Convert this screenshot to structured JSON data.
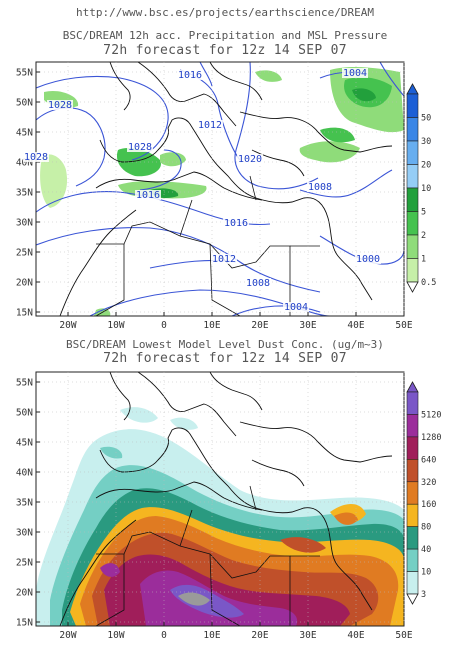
{
  "header": {
    "url": "http://www.bsc.es/projects/earthscience/DREAM"
  },
  "panel_top": {
    "title_line1": "BSC/DREAM 12h acc. Precipitation and MSL Pressure",
    "title_line2": "72h forecast for 12z 14 SEP 07",
    "lat_labels": [
      "55N",
      "50N",
      "45N",
      "40N",
      "35N",
      "30N",
      "25N",
      "20N",
      "15N"
    ],
    "lon_labels": [
      "20W",
      "10W",
      "0",
      "10E",
      "20E",
      "30E",
      "40E",
      "50E"
    ],
    "isobar_labels": [
      "1028",
      "1016",
      "1004",
      "1028",
      "1012",
      "1028",
      "1020",
      "1016",
      "1016",
      "1008",
      "1012",
      "1008",
      "1000",
      "1004"
    ],
    "colorbar_levels": [
      "50",
      "30",
      "20",
      "10",
      "5",
      "2",
      "1",
      "0.5"
    ],
    "colorbar_colors": [
      "#1c5fd6",
      "#3a86e6",
      "#67aef0",
      "#95cdf6",
      "#22a03c",
      "#45c24f",
      "#8fdc7a",
      "#c6f0a8"
    ]
  },
  "panel_bottom": {
    "title_line1": "BSC/DREAM Lowest Model Level Dust Conc. (ug/m~3)",
    "title_line2": "72h forecast for 12z 14 SEP 07",
    "lat_labels": [
      "55N",
      "50N",
      "45N",
      "40N",
      "35N",
      "30N",
      "25N",
      "20N",
      "15N"
    ],
    "lon_labels": [
      "20W",
      "10W",
      "0",
      "10E",
      "20E",
      "30E",
      "40E",
      "50E"
    ],
    "colorbar_levels": [
      "5120",
      "1280",
      "640",
      "320",
      "160",
      "80",
      "40",
      "10",
      "3"
    ],
    "colorbar_colors": [
      "#7a57c7",
      "#9b2d9b",
      "#a01e5a",
      "#c0502a",
      "#e07b22",
      "#f5b520",
      "#2a9a80",
      "#74cfc4",
      "#c8efee"
    ]
  }
}
